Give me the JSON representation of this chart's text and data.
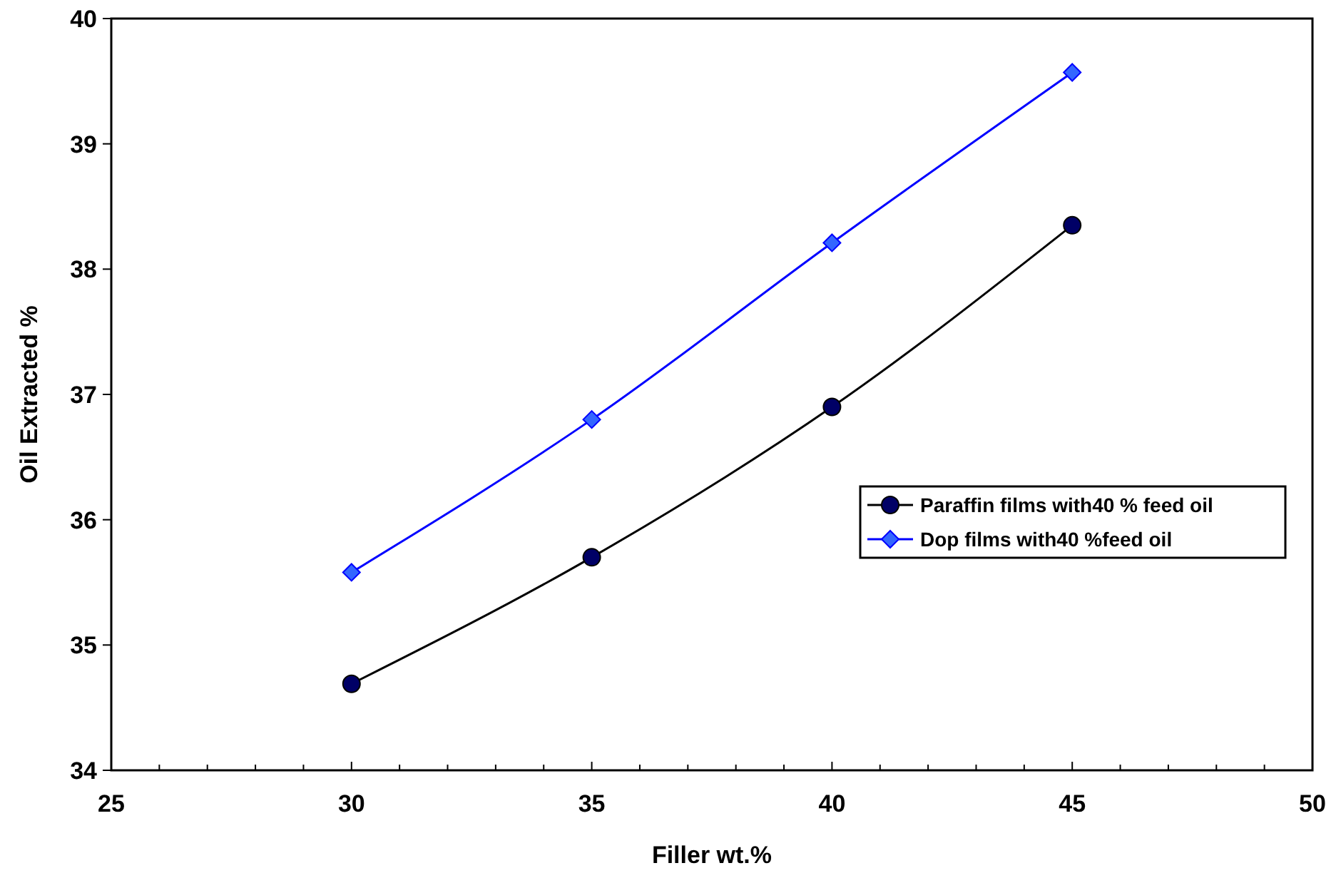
{
  "chart_data": {
    "type": "line",
    "xlabel": "Filler wt.%",
    "ylabel": "Oil Extracted %",
    "x": [
      30,
      35,
      40,
      45
    ],
    "series": [
      {
        "name": "Paraffin films with40 % feed oil",
        "color": "#000000",
        "marker": "circle",
        "values": [
          34.69,
          35.7,
          36.9,
          38.35
        ]
      },
      {
        "name": "Dop films with40 %feed oil",
        "color": "#0000ff",
        "marker": "diamond",
        "values": [
          35.58,
          36.8,
          38.21,
          39.57
        ]
      }
    ],
    "xlim": [
      25,
      50
    ],
    "xticks": [
      25,
      {
        "value": 26,
        "label": null
      },
      {
        "value": 27,
        "label": null
      },
      {
        "value": 28,
        "label": null
      },
      {
        "value": 29,
        "label": null
      },
      30,
      {
        "value": 31,
        "label": null
      },
      {
        "value": 32,
        "label": null
      },
      {
        "value": 33,
        "label": null
      },
      {
        "value": 34,
        "label": null
      },
      35,
      {
        "value": 36,
        "label": null
      },
      {
        "value": 37,
        "label": null
      },
      {
        "value": 38,
        "label": null
      },
      {
        "value": 39,
        "label": null
      },
      40,
      {
        "value": 41,
        "label": null
      },
      {
        "value": 42,
        "label": null
      },
      {
        "value": 43,
        "label": null
      },
      {
        "value": 44,
        "label": null
      },
      45,
      {
        "value": 46,
        "label": null
      },
      {
        "value": 47,
        "label": null
      },
      {
        "value": 48,
        "label": null
      },
      {
        "value": 49,
        "label": null
      },
      50
    ],
    "ylim": [
      34,
      40
    ],
    "yticks": [
      34,
      35,
      36,
      37,
      38,
      39,
      40
    ],
    "grid": false,
    "legend": "right",
    "line_style": "solid"
  }
}
